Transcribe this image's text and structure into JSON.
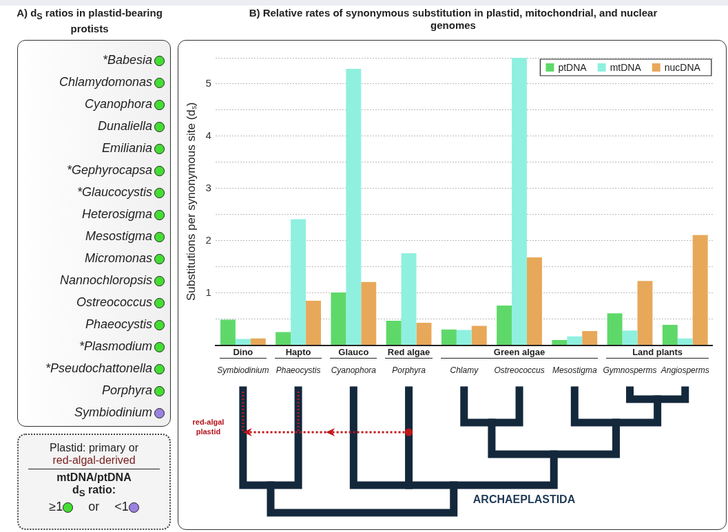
{
  "chart_data": [
    {
      "type": "other",
      "title": "A) d$_{S}$ ratios in plastid-bearing protists",
      "categories": [
        "*Babesia",
        "Chlamydomonas",
        "Cyanophora",
        "Dunaliella",
        "Emiliania",
        "*Gephyrocapsa",
        "*Glaucocystis",
        "Heterosigma",
        "Mesostigma",
        "Micromonas",
        "Nannochloropsis",
        "Ostreococcus",
        "Phaeocystis",
        "*Plasmodium",
        "*Pseudochattonella",
        "Porphyra",
        "Symbiodinium"
      ],
      "colors": [
        "#44dd33",
        "#44dd33",
        "#44dd33",
        "#44dd33",
        "#44dd33",
        "#44dd33",
        "#44dd33",
        "#44dd33",
        "#44dd33",
        "#44dd33",
        "#44dd33",
        "#44dd33",
        "#44dd33",
        "#44dd33",
        "#44dd33",
        "#44dd33",
        "#9b82e0"
      ],
      "annotations": [
        "Plastid: primary or",
        "red-algal-derived",
        "mtDNA/ptDNA",
        "d$_{S}$ ratio:",
        "≥1",
        "or",
        "<1"
      ]
    },
    {
      "type": "bar",
      "title": "B) Relative rates of synonymous substitution in plastid, mitochondrial, and nuclear genomes",
      "ylabel": "Substitutions per synonymous site (dₛ)",
      "categories": [
        "Symbiodinium",
        "Phaeocystis",
        "Cyanophora",
        "Porphyra",
        "Chlamy",
        "Ostreococcus",
        "Mesostigma",
        "Gymnosperms",
        "Angiosperms"
      ],
      "series": [
        {
          "name": "ptDNA",
          "color": "#5fd86a",
          "values": [
            0.49,
            0.25,
            1.01,
            0.47,
            0.3,
            0.76,
            0.1,
            0.61,
            0.39
          ]
        },
        {
          "name": "mtDNA",
          "color": "#8ff0df",
          "values": [
            0.12,
            2.41,
            5.29,
            1.76,
            0.29,
            5.5,
            0.17,
            0.28,
            0.13
          ]
        },
        {
          "name": "nucDNA",
          "color": "#e8a85a",
          "values": [
            0.13,
            0.85,
            1.21,
            0.43,
            0.37,
            1.68,
            0.27,
            1.23,
            2.11
          ]
        }
      ],
      "ylim": [
        0,
        5.5
      ],
      "yticks": [
        {
          "value": 0,
          "label": null
        },
        {
          "value": 0.5,
          "label": null
        },
        1,
        {
          "value": 1.5,
          "label": null
        },
        2,
        {
          "value": 2.5,
          "label": null
        },
        3,
        {
          "value": 3.5,
          "label": null
        },
        4,
        {
          "value": 4.5,
          "label": null
        },
        5,
        {
          "value": 5.5,
          "label": null
        }
      ],
      "grid": "y",
      "legend": "top right",
      "annotations": [
        "Dino",
        "Hapto",
        "Glauco",
        "Red algae",
        "Green algae",
        "Land plants",
        "red-algal plastid",
        "ARCHAEPLASTIDA"
      ]
    }
  ]
}
